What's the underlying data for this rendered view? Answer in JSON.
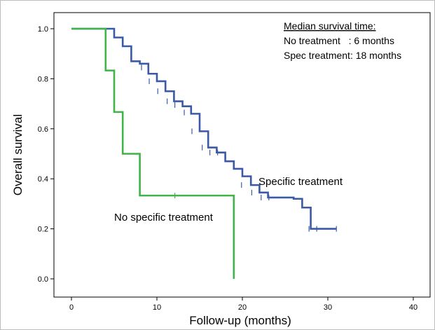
{
  "chart_data": {
    "type": "line",
    "subtype": "kaplan-meier step",
    "xlabel": "Follow-up (months)",
    "ylabel": "Overall survival",
    "xlim": [
      0,
      40
    ],
    "ylim": [
      0.0,
      1.0
    ],
    "x_ticks": [
      "0",
      "10",
      "20",
      "30",
      "40"
    ],
    "y_ticks": [
      "0.0",
      "0.2",
      "0.4",
      "0.6",
      "0.8",
      "1.0"
    ],
    "grid": false,
    "legend": null,
    "annotation": {
      "title": "Median survival time:",
      "lines": [
        "No treatment   : 6 months",
        "Spec treatment: 18 months"
      ]
    },
    "series": [
      {
        "label": "Specific treatment",
        "color": "#3a5aa8",
        "steps": [
          [
            0,
            1.0
          ],
          [
            4,
            1.0
          ],
          [
            5,
            0.965
          ],
          [
            6,
            0.93
          ],
          [
            7,
            0.87
          ],
          [
            8,
            0.86
          ],
          [
            9,
            0.82
          ],
          [
            10,
            0.79
          ],
          [
            11,
            0.75
          ],
          [
            12,
            0.71
          ],
          [
            13,
            0.69
          ],
          [
            14,
            0.66
          ],
          [
            15,
            0.59
          ],
          [
            16,
            0.525
          ],
          [
            17,
            0.505
          ],
          [
            18,
            0.47
          ],
          [
            19,
            0.44
          ],
          [
            20,
            0.41
          ],
          [
            21,
            0.375
          ],
          [
            22,
            0.345
          ],
          [
            23,
            0.325
          ],
          [
            26,
            0.32
          ],
          [
            27,
            0.285
          ],
          [
            28,
            0.2
          ],
          [
            31,
            0.2
          ]
        ],
        "censors": [
          [
            8.2,
            0.845
          ],
          [
            9.1,
            0.79
          ],
          [
            10.1,
            0.75
          ],
          [
            11.2,
            0.71
          ],
          [
            12.1,
            0.695
          ],
          [
            13.2,
            0.665
          ],
          [
            14.1,
            0.59
          ],
          [
            15.3,
            0.525
          ],
          [
            16.2,
            0.505
          ],
          [
            17.1,
            0.505
          ],
          [
            19.9,
            0.375
          ],
          [
            21.1,
            0.345
          ],
          [
            22.2,
            0.325
          ],
          [
            23.1,
            0.325
          ],
          [
            27.8,
            0.2
          ],
          [
            28.7,
            0.2
          ],
          [
            31.0,
            0.2
          ]
        ]
      },
      {
        "label": "No specific treatment",
        "color": "#40b34a",
        "steps": [
          [
            0,
            1.0
          ],
          [
            4,
            0.833
          ],
          [
            5,
            0.667
          ],
          [
            6,
            0.5
          ],
          [
            8,
            0.333
          ],
          [
            19,
            0.0
          ]
        ],
        "censors": [
          [
            12.1,
            0.333
          ]
        ]
      }
    ]
  }
}
